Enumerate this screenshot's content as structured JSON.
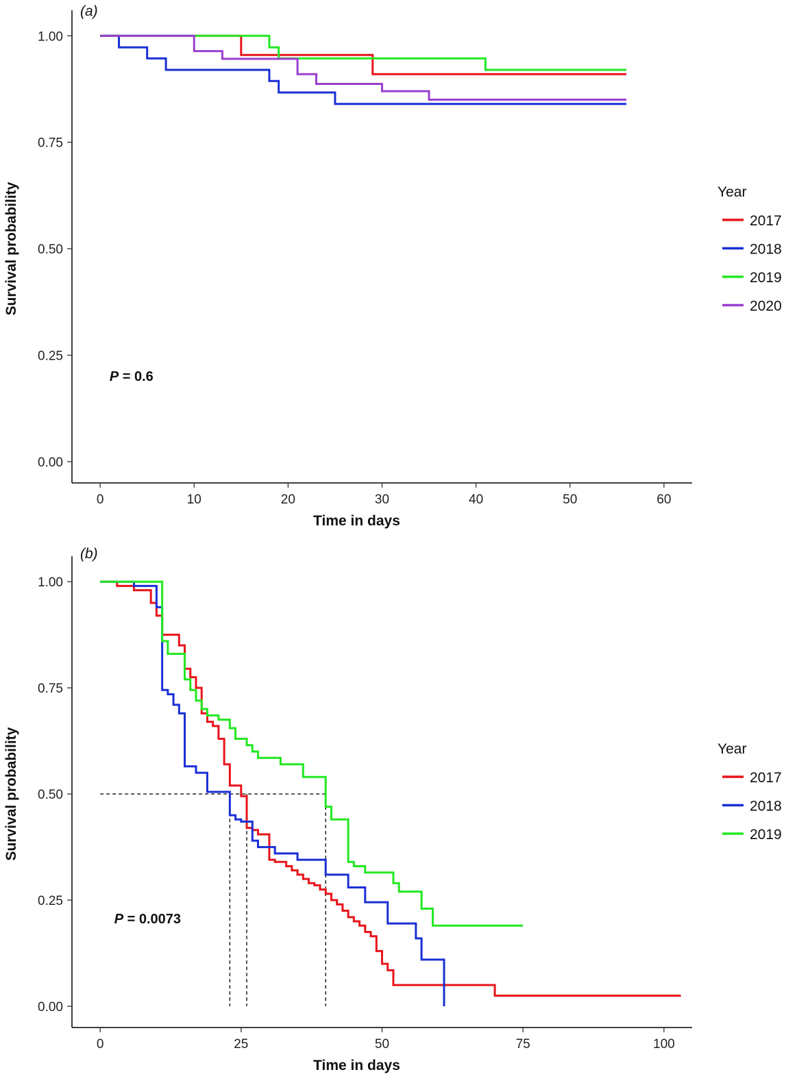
{
  "chart_data": [
    {
      "type": "line",
      "panel_label": "(a)",
      "xlabel": "Time in days",
      "ylabel": "Survival probability",
      "xlim": [
        -3,
        63
      ],
      "ylim": [
        -0.05,
        1.06
      ],
      "xticks": [
        0,
        10,
        20,
        30,
        40,
        50,
        60
      ],
      "yticks": [
        0.0,
        0.25,
        0.5,
        0.75,
        1.0
      ],
      "ytick_labels": [
        "0.00",
        "0.25",
        "0.50",
        "0.75",
        "1.00"
      ],
      "xtick_labels": [
        "0",
        "10",
        "20",
        "30",
        "40",
        "50",
        "60"
      ],
      "annotation": {
        "prefix": "P",
        "value": " = 0.6",
        "x": 1,
        "y": 0.19
      },
      "legend": {
        "title": "Year",
        "position": "right"
      },
      "grid": false,
      "step": true,
      "series": [
        {
          "name": "2017",
          "color": "#e8141b",
          "x": [
            0,
            15,
            29,
            56
          ],
          "y": [
            1.0,
            0.955,
            0.91,
            0.91
          ]
        },
        {
          "name": "2018",
          "color": "#1a2fd6",
          "x": [
            0,
            2,
            5,
            7,
            18,
            19,
            25,
            56
          ],
          "y": [
            1.0,
            0.973,
            0.947,
            0.92,
            0.894,
            0.867,
            0.84,
            0.84
          ]
        },
        {
          "name": "2019",
          "color": "#22e822",
          "x": [
            0,
            18,
            19,
            41,
            56
          ],
          "y": [
            1.0,
            0.973,
            0.947,
            0.92,
            0.92
          ]
        },
        {
          "name": "2020",
          "color": "#9a3fd0",
          "x": [
            0,
            10,
            13,
            21,
            23,
            30,
            35,
            56
          ],
          "y": [
            1.0,
            0.964,
            0.946,
            0.91,
            0.887,
            0.87,
            0.85,
            0.85
          ]
        }
      ]
    },
    {
      "type": "line",
      "panel_label": "(b)",
      "xlabel": "Time in days",
      "ylabel": "Survival probability",
      "xlim": [
        -5,
        105
      ],
      "ylim": [
        -0.05,
        1.06
      ],
      "xticks": [
        0,
        25,
        50,
        75,
        100
      ],
      "yticks": [
        0.0,
        0.25,
        0.5,
        0.75,
        1.0
      ],
      "ytick_labels": [
        "0.00",
        "0.25",
        "0.50",
        "0.75",
        "1.00"
      ],
      "xtick_labels": [
        "0",
        "25",
        "50",
        "75",
        "100"
      ],
      "annotation": {
        "prefix": "P",
        "value": " = 0.0073",
        "x": 2.5,
        "y": 0.195
      },
      "legend": {
        "title": "Year",
        "position": "right"
      },
      "grid": false,
      "step": true,
      "median_lines": {
        "y": 0.5,
        "x": [
          23,
          26,
          40
        ]
      },
      "series": [
        {
          "name": "2017",
          "color": "#e8141b",
          "x": [
            0,
            3,
            6,
            9,
            10,
            11,
            14,
            15,
            16,
            17,
            18,
            19,
            20,
            21,
            22,
            23,
            25,
            26,
            27,
            28,
            30,
            31,
            33,
            34,
            35,
            36,
            37,
            38,
            39,
            40,
            41,
            42,
            43,
            44,
            45,
            46,
            47,
            48,
            49,
            50,
            51,
            52,
            70,
            103
          ],
          "y": [
            1.0,
            0.99,
            0.98,
            0.95,
            0.92,
            0.875,
            0.85,
            0.795,
            0.775,
            0.75,
            0.69,
            0.67,
            0.66,
            0.63,
            0.57,
            0.52,
            0.495,
            0.42,
            0.415,
            0.405,
            0.345,
            0.34,
            0.33,
            0.32,
            0.31,
            0.3,
            0.29,
            0.285,
            0.275,
            0.265,
            0.25,
            0.24,
            0.225,
            0.21,
            0.2,
            0.19,
            0.175,
            0.165,
            0.13,
            0.1,
            0.085,
            0.05,
            0.025,
            0.025
          ]
        },
        {
          "name": "2018",
          "color": "#1a2fd6",
          "x": [
            0,
            6,
            10,
            11,
            12,
            13,
            14,
            15,
            17,
            19,
            23,
            24,
            25,
            27,
            28,
            31,
            35,
            40,
            44,
            47,
            51,
            56,
            57,
            61
          ],
          "y": [
            1.0,
            0.99,
            0.94,
            0.745,
            0.735,
            0.71,
            0.69,
            0.565,
            0.55,
            0.505,
            0.45,
            0.44,
            0.435,
            0.39,
            0.375,
            0.36,
            0.345,
            0.31,
            0.28,
            0.245,
            0.195,
            0.16,
            0.11,
            0.0
          ]
        },
        {
          "name": "2019",
          "color": "#22e822",
          "x": [
            0,
            11,
            12,
            15,
            16,
            17,
            18,
            19,
            21,
            23,
            24,
            26,
            27,
            28,
            32,
            36,
            40,
            41,
            44,
            45,
            47,
            52,
            53,
            57,
            59,
            75
          ],
          "y": [
            1.0,
            0.86,
            0.83,
            0.77,
            0.745,
            0.72,
            0.7,
            0.685,
            0.675,
            0.655,
            0.63,
            0.615,
            0.6,
            0.585,
            0.57,
            0.54,
            0.47,
            0.44,
            0.34,
            0.33,
            0.315,
            0.29,
            0.27,
            0.23,
            0.19,
            0.19
          ]
        }
      ]
    }
  ]
}
